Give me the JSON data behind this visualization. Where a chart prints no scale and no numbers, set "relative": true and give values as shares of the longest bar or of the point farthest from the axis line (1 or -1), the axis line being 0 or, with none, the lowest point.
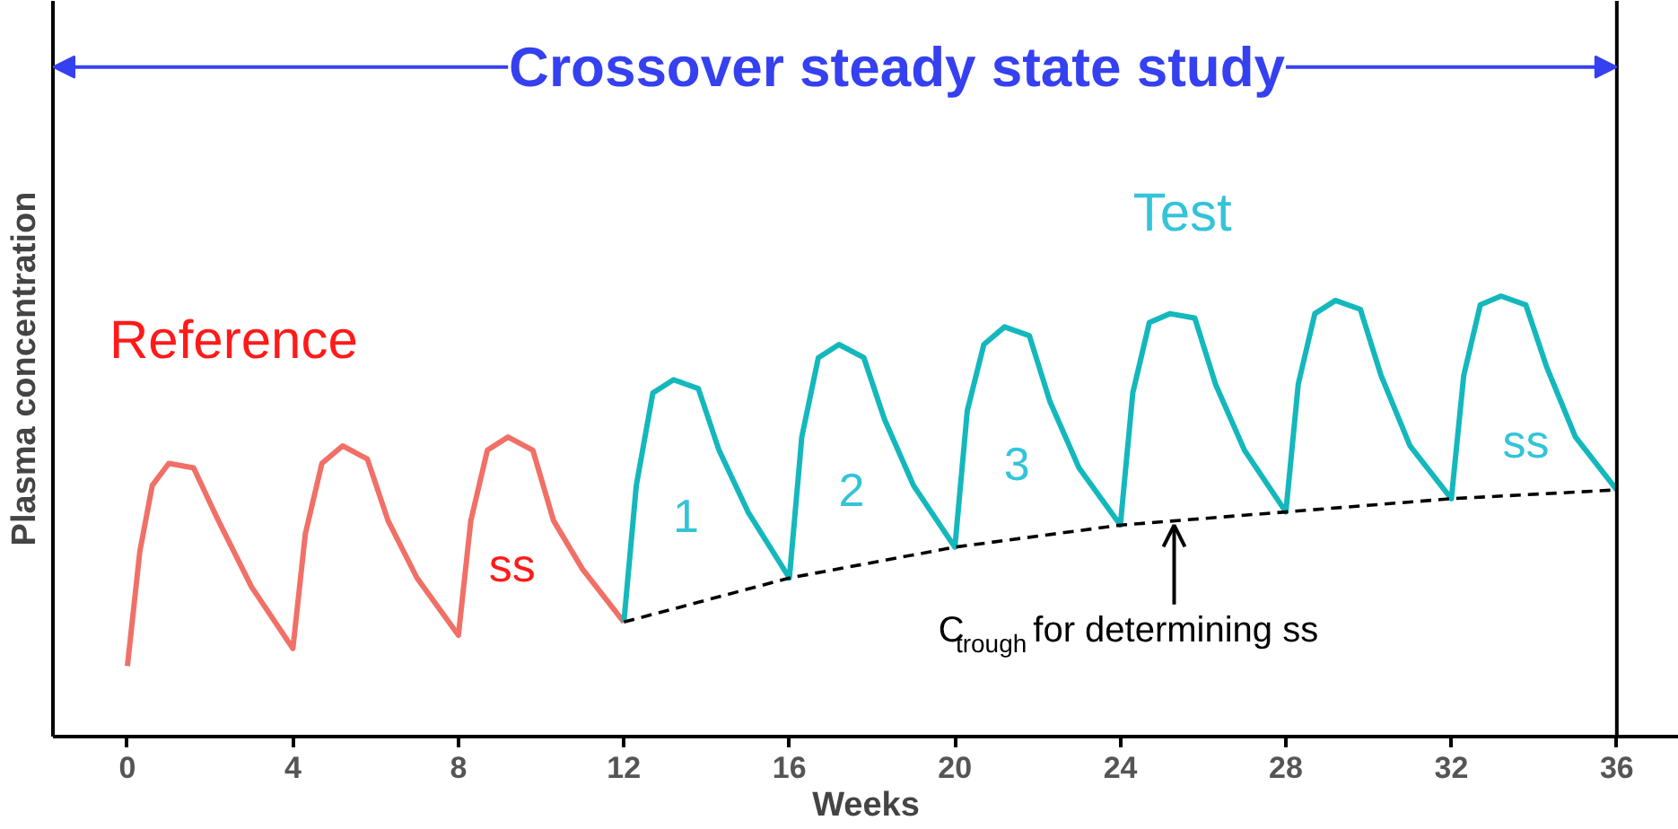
{
  "chart_data": {
    "type": "line",
    "title": "Crossover steady state study",
    "xlabel": "Weeks",
    "ylabel": "Plasma concentration",
    "relative": true,
    "xlim": [
      -1.8,
      37.5
    ],
    "xticks": [
      0,
      4,
      8,
      12,
      16,
      20,
      24,
      28,
      32,
      36
    ],
    "grid": false,
    "marker": "none",
    "tick_labels": "x",
    "series": [
      {
        "name": "Reference",
        "color": "#f07068",
        "line_style": "solid",
        "x": [
          0,
          0.3,
          0.6,
          1,
          1.6,
          2.2,
          3,
          4,
          4.3,
          4.7,
          5.2,
          5.8,
          6.3,
          7,
          8,
          8.3,
          8.7,
          9.2,
          9.8,
          10.3,
          11,
          12
        ],
        "values": [
          0.16,
          0.42,
          0.57,
          0.62,
          0.61,
          0.49,
          0.34,
          0.2,
          0.46,
          0.62,
          0.66,
          0.63,
          0.49,
          0.36,
          0.23,
          0.49,
          0.65,
          0.68,
          0.65,
          0.49,
          0.38,
          0.26
        ]
      },
      {
        "name": "Test",
        "color": "#14b8bc",
        "line_style": "solid",
        "x": [
          12,
          12.3,
          12.7,
          13.2,
          13.8,
          14.3,
          15,
          16,
          16.3,
          16.7,
          17.2,
          17.8,
          18.3,
          19,
          20,
          20.3,
          20.7,
          21.2,
          21.8,
          22.3,
          23,
          24,
          24.3,
          24.7,
          25.2,
          25.8,
          26.3,
          27,
          28,
          28.3,
          28.7,
          29.2,
          29.8,
          30.3,
          31,
          32,
          32.3,
          32.7,
          33.2,
          33.8,
          34.3,
          35,
          36
        ],
        "values": [
          0.26,
          0.57,
          0.78,
          0.81,
          0.79,
          0.65,
          0.51,
          0.36,
          0.68,
          0.86,
          0.89,
          0.86,
          0.72,
          0.57,
          0.43,
          0.74,
          0.89,
          0.93,
          0.91,
          0.76,
          0.61,
          0.48,
          0.78,
          0.94,
          0.96,
          0.95,
          0.8,
          0.65,
          0.51,
          0.8,
          0.96,
          0.99,
          0.97,
          0.82,
          0.66,
          0.54,
          0.82,
          0.98,
          1.0,
          0.98,
          0.84,
          0.68,
          0.56
        ]
      },
      {
        "color": "#000000",
        "line_style": "dashed",
        "x": [
          12,
          16,
          20,
          24,
          28,
          32,
          36
        ],
        "values": [
          0.26,
          0.36,
          0.43,
          0.48,
          0.51,
          0.54,
          0.56
        ]
      }
    ],
    "ref_lines": [
      {
        "axis": "x",
        "value": 36,
        "color": "#000000",
        "line_style": "solid"
      }
    ],
    "annotations": [
      "ss",
      "1",
      "2",
      "3",
      "ss",
      {
        "text": "C$_{trough}$ for determining ss",
        "x": 25.3,
        "y": 0.49
      }
    ]
  }
}
